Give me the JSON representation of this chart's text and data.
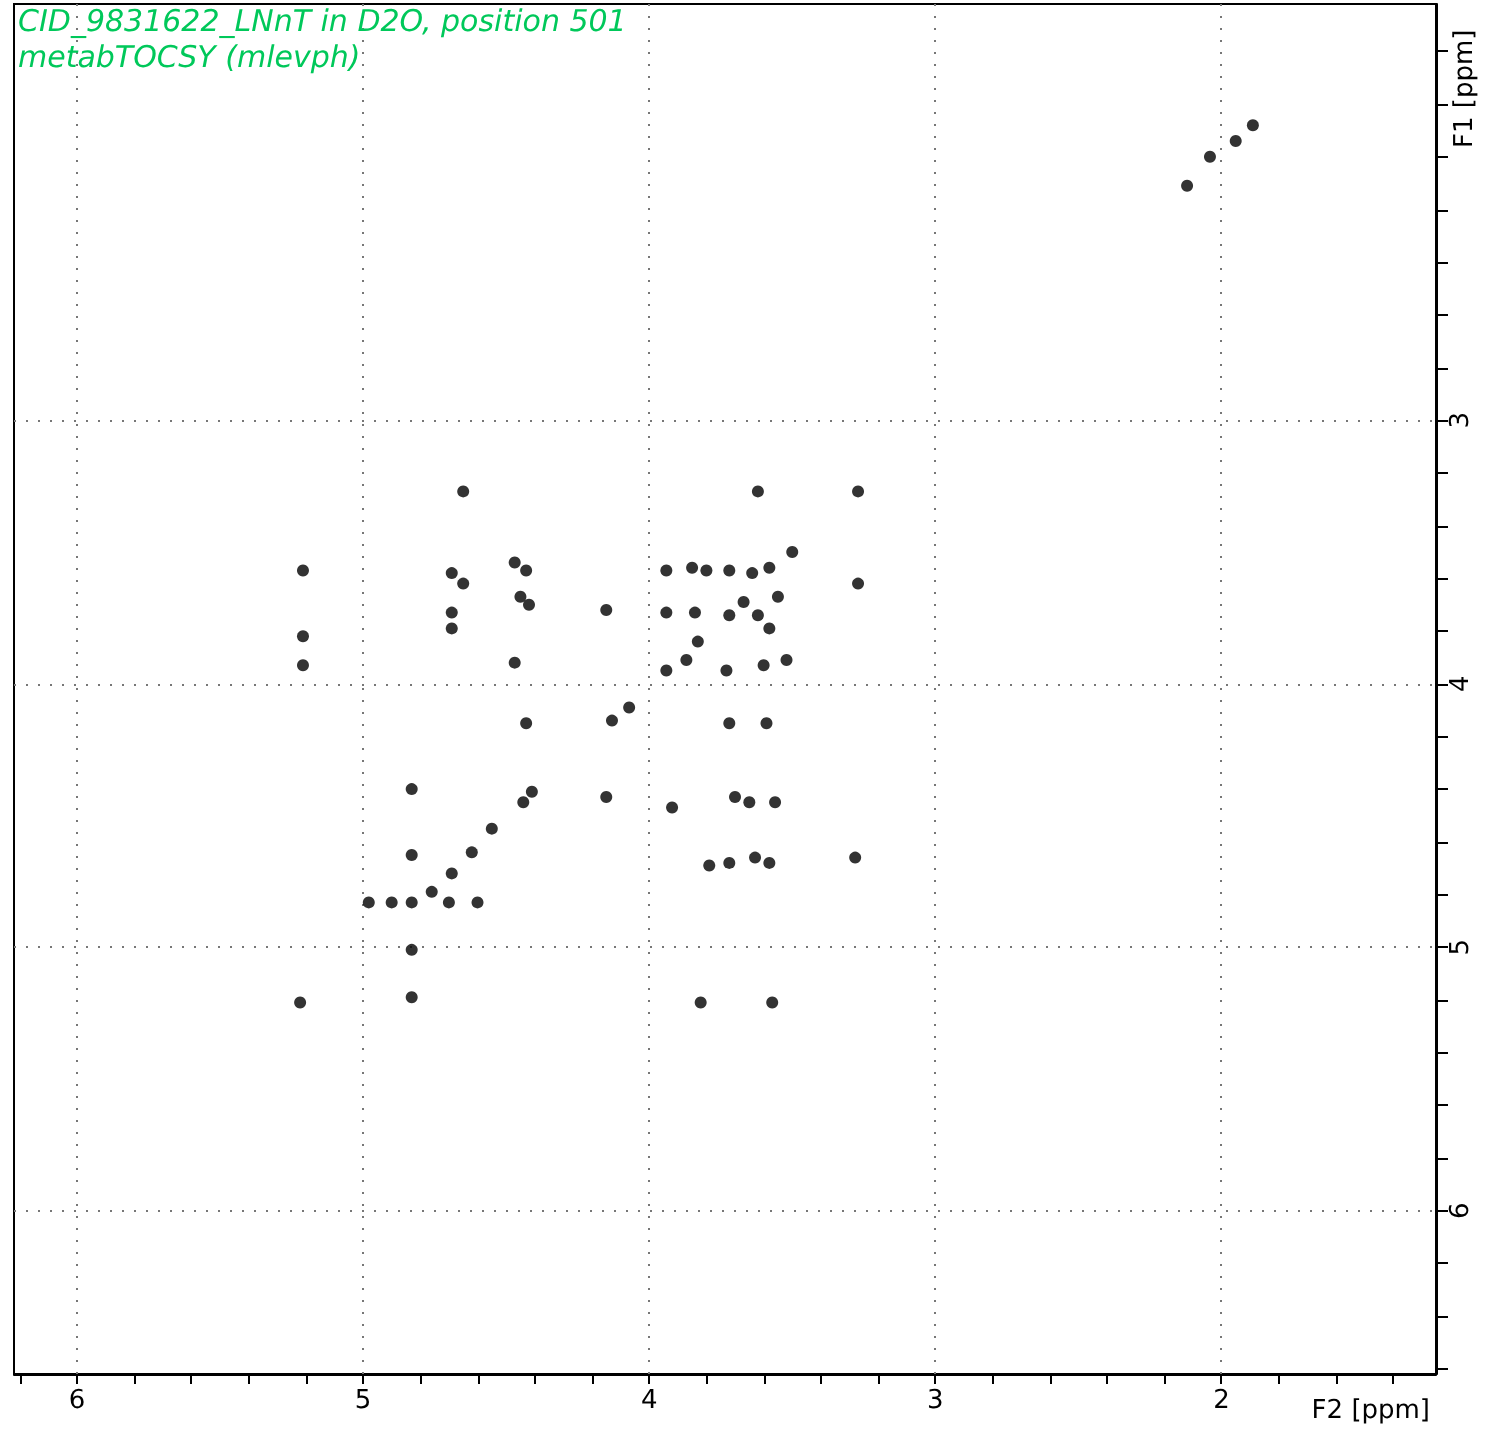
{
  "chart_data": {
    "type": "scatter",
    "title": "CID_9831622_LNnT in D2O, position 501",
    "subtitle": "metabTOCSY (mlevph)",
    "xlabel": "F2 [ppm]",
    "ylabel": "F1 [ppm]",
    "x": [
      2.04,
      1.95,
      1.89,
      2.12,
      5.21,
      5.21,
      5.21,
      5.22,
      4.65,
      4.69,
      4.65,
      4.69,
      4.69,
      4.47,
      4.43,
      4.45,
      4.42,
      4.47,
      4.43,
      4.44,
      4.41,
      4.15,
      4.13,
      4.07,
      4.15,
      4.83,
      4.83,
      4.83,
      4.83,
      4.83,
      4.98,
      4.9,
      4.7,
      4.6,
      4.76,
      4.69,
      4.62,
      4.55,
      3.62,
      3.27,
      3.27,
      3.5,
      3.58,
      3.64,
      3.72,
      3.8,
      3.85,
      3.94,
      3.94,
      3.84,
      3.72,
      3.62,
      3.55,
      3.67,
      3.58,
      3.83,
      3.94,
      3.73,
      3.6,
      3.52,
      3.87,
      3.72,
      3.59,
      3.92,
      3.7,
      3.65,
      3.56,
      3.79,
      3.72,
      3.63,
      3.58,
      3.28,
      3.82,
      3.57
    ],
    "values": [
      2.0,
      1.94,
      1.88,
      2.11,
      3.57,
      3.82,
      3.93,
      5.21,
      3.27,
      3.58,
      3.62,
      3.73,
      3.79,
      3.54,
      3.57,
      3.67,
      3.7,
      3.92,
      4.15,
      4.45,
      4.41,
      3.72,
      4.14,
      4.09,
      4.43,
      4.4,
      4.65,
      4.83,
      5.01,
      5.19,
      4.83,
      4.83,
      4.83,
      4.83,
      4.79,
      4.72,
      4.64,
      4.55,
      3.27,
      3.27,
      3.62,
      3.5,
      3.56,
      3.58,
      3.57,
      3.57,
      3.56,
      3.57,
      3.73,
      3.73,
      3.74,
      3.74,
      3.67,
      3.69,
      3.79,
      3.84,
      3.95,
      3.95,
      3.93,
      3.91,
      3.91,
      4.15,
      4.15,
      4.47,
      4.43,
      4.45,
      4.45,
      4.69,
      4.68,
      4.66,
      4.68,
      4.66,
      5.21,
      5.21
    ],
    "color": "#000000",
    "marker": "circle",
    "grid": true,
    "xlim": [
      6.22,
      1.25
    ],
    "xticks": [
      {
        "value": 6.2,
        "label": null
      },
      6,
      {
        "value": 5.8,
        "label": null
      },
      {
        "value": 5.6,
        "label": null
      },
      {
        "value": 5.4,
        "label": null
      },
      {
        "value": 5.2,
        "label": null
      },
      5,
      {
        "value": 4.8,
        "label": null
      },
      {
        "value": 4.6,
        "label": null
      },
      {
        "value": 4.4,
        "label": null
      },
      {
        "value": 4.2,
        "label": null
      },
      4,
      {
        "value": 3.8,
        "label": null
      },
      {
        "value": 3.6,
        "label": null
      },
      {
        "value": 3.4,
        "label": null
      },
      {
        "value": 3.2,
        "label": null
      },
      3,
      {
        "value": 2.8,
        "label": null
      },
      {
        "value": 2.6,
        "label": null
      },
      {
        "value": 2.4,
        "label": null
      },
      {
        "value": 2.2,
        "label": null
      },
      2,
      {
        "value": 1.8,
        "label": null
      },
      {
        "value": 1.6,
        "label": null
      },
      {
        "value": 1.4,
        "label": null
      }
    ],
    "ylim": [
      6.62,
      1.42
    ],
    "yticks": [
      {
        "value": 1.6,
        "label": null
      },
      {
        "value": 1.8,
        "label": null
      },
      {
        "value": 2,
        "label": null
      },
      {
        "value": 2.2,
        "label": null
      },
      {
        "value": 2.4,
        "label": null
      },
      {
        "value": 2.6,
        "label": null
      },
      {
        "value": 2.8,
        "label": null
      },
      3,
      {
        "value": 3.2,
        "label": null
      },
      {
        "value": 3.4,
        "label": null
      },
      {
        "value": 3.6,
        "label": null
      },
      {
        "value": 3.8,
        "label": null
      },
      4,
      {
        "value": 4.2,
        "label": null
      },
      {
        "value": 4.4,
        "label": null
      },
      {
        "value": 4.6,
        "label": null
      },
      {
        "value": 4.8,
        "label": null
      },
      5,
      {
        "value": 5.2,
        "label": null
      },
      {
        "value": 5.4,
        "label": null
      },
      {
        "value": 5.6,
        "label": null
      },
      {
        "value": 5.8,
        "label": null
      },
      6,
      {
        "value": 6.2,
        "label": null
      },
      {
        "value": 6.4,
        "label": null
      },
      {
        "value": 6.6,
        "label": null
      }
    ]
  }
}
